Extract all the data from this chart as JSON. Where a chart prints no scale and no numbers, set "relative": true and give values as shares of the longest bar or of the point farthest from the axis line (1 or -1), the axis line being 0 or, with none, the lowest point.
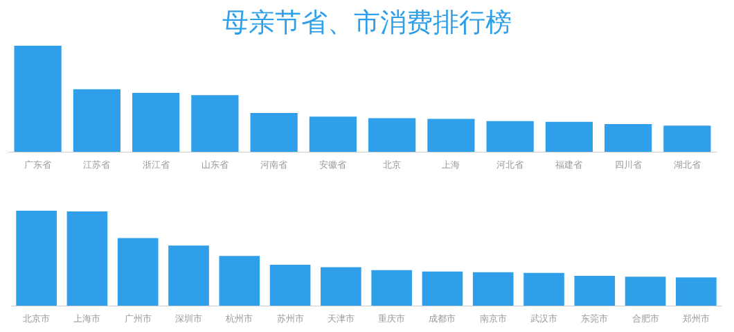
{
  "chart_data": [
    {
      "type": "bar",
      "title": "母亲节省、市消费排行榜",
      "relative": true,
      "categories": [
        "广东省",
        "江苏省",
        "浙江省",
        "山东省",
        "河南省",
        "安徽省",
        "北京",
        "上海",
        "河北省",
        "福建省",
        "四川省",
        "湖北省"
      ],
      "series": [
        {
          "color": "#2f9fe9",
          "values": [
            1,
            0.59,
            0.556,
            0.535,
            0.366,
            0.331,
            0.317,
            0.31,
            0.289,
            0.282,
            0.261,
            0.246
          ]
        }
      ]
    },
    {
      "type": "bar",
      "relative": true,
      "categories": [
        "北京市",
        "上海市",
        "广州市",
        "深圳市",
        "杭州市",
        "苏州市",
        "天津市",
        "重庆市",
        "成都市",
        "南京市",
        "武汉市",
        "东莞市",
        "合肥市",
        "郑州市"
      ],
      "series": [
        {
          "color": "#2f9fe9",
          "values": [
            1,
            0.992,
            0.711,
            0.633,
            0.523,
            0.43,
            0.406,
            0.375,
            0.359,
            0.352,
            0.344,
            0.313,
            0.305,
            0.297
          ]
        }
      ]
    }
  ]
}
